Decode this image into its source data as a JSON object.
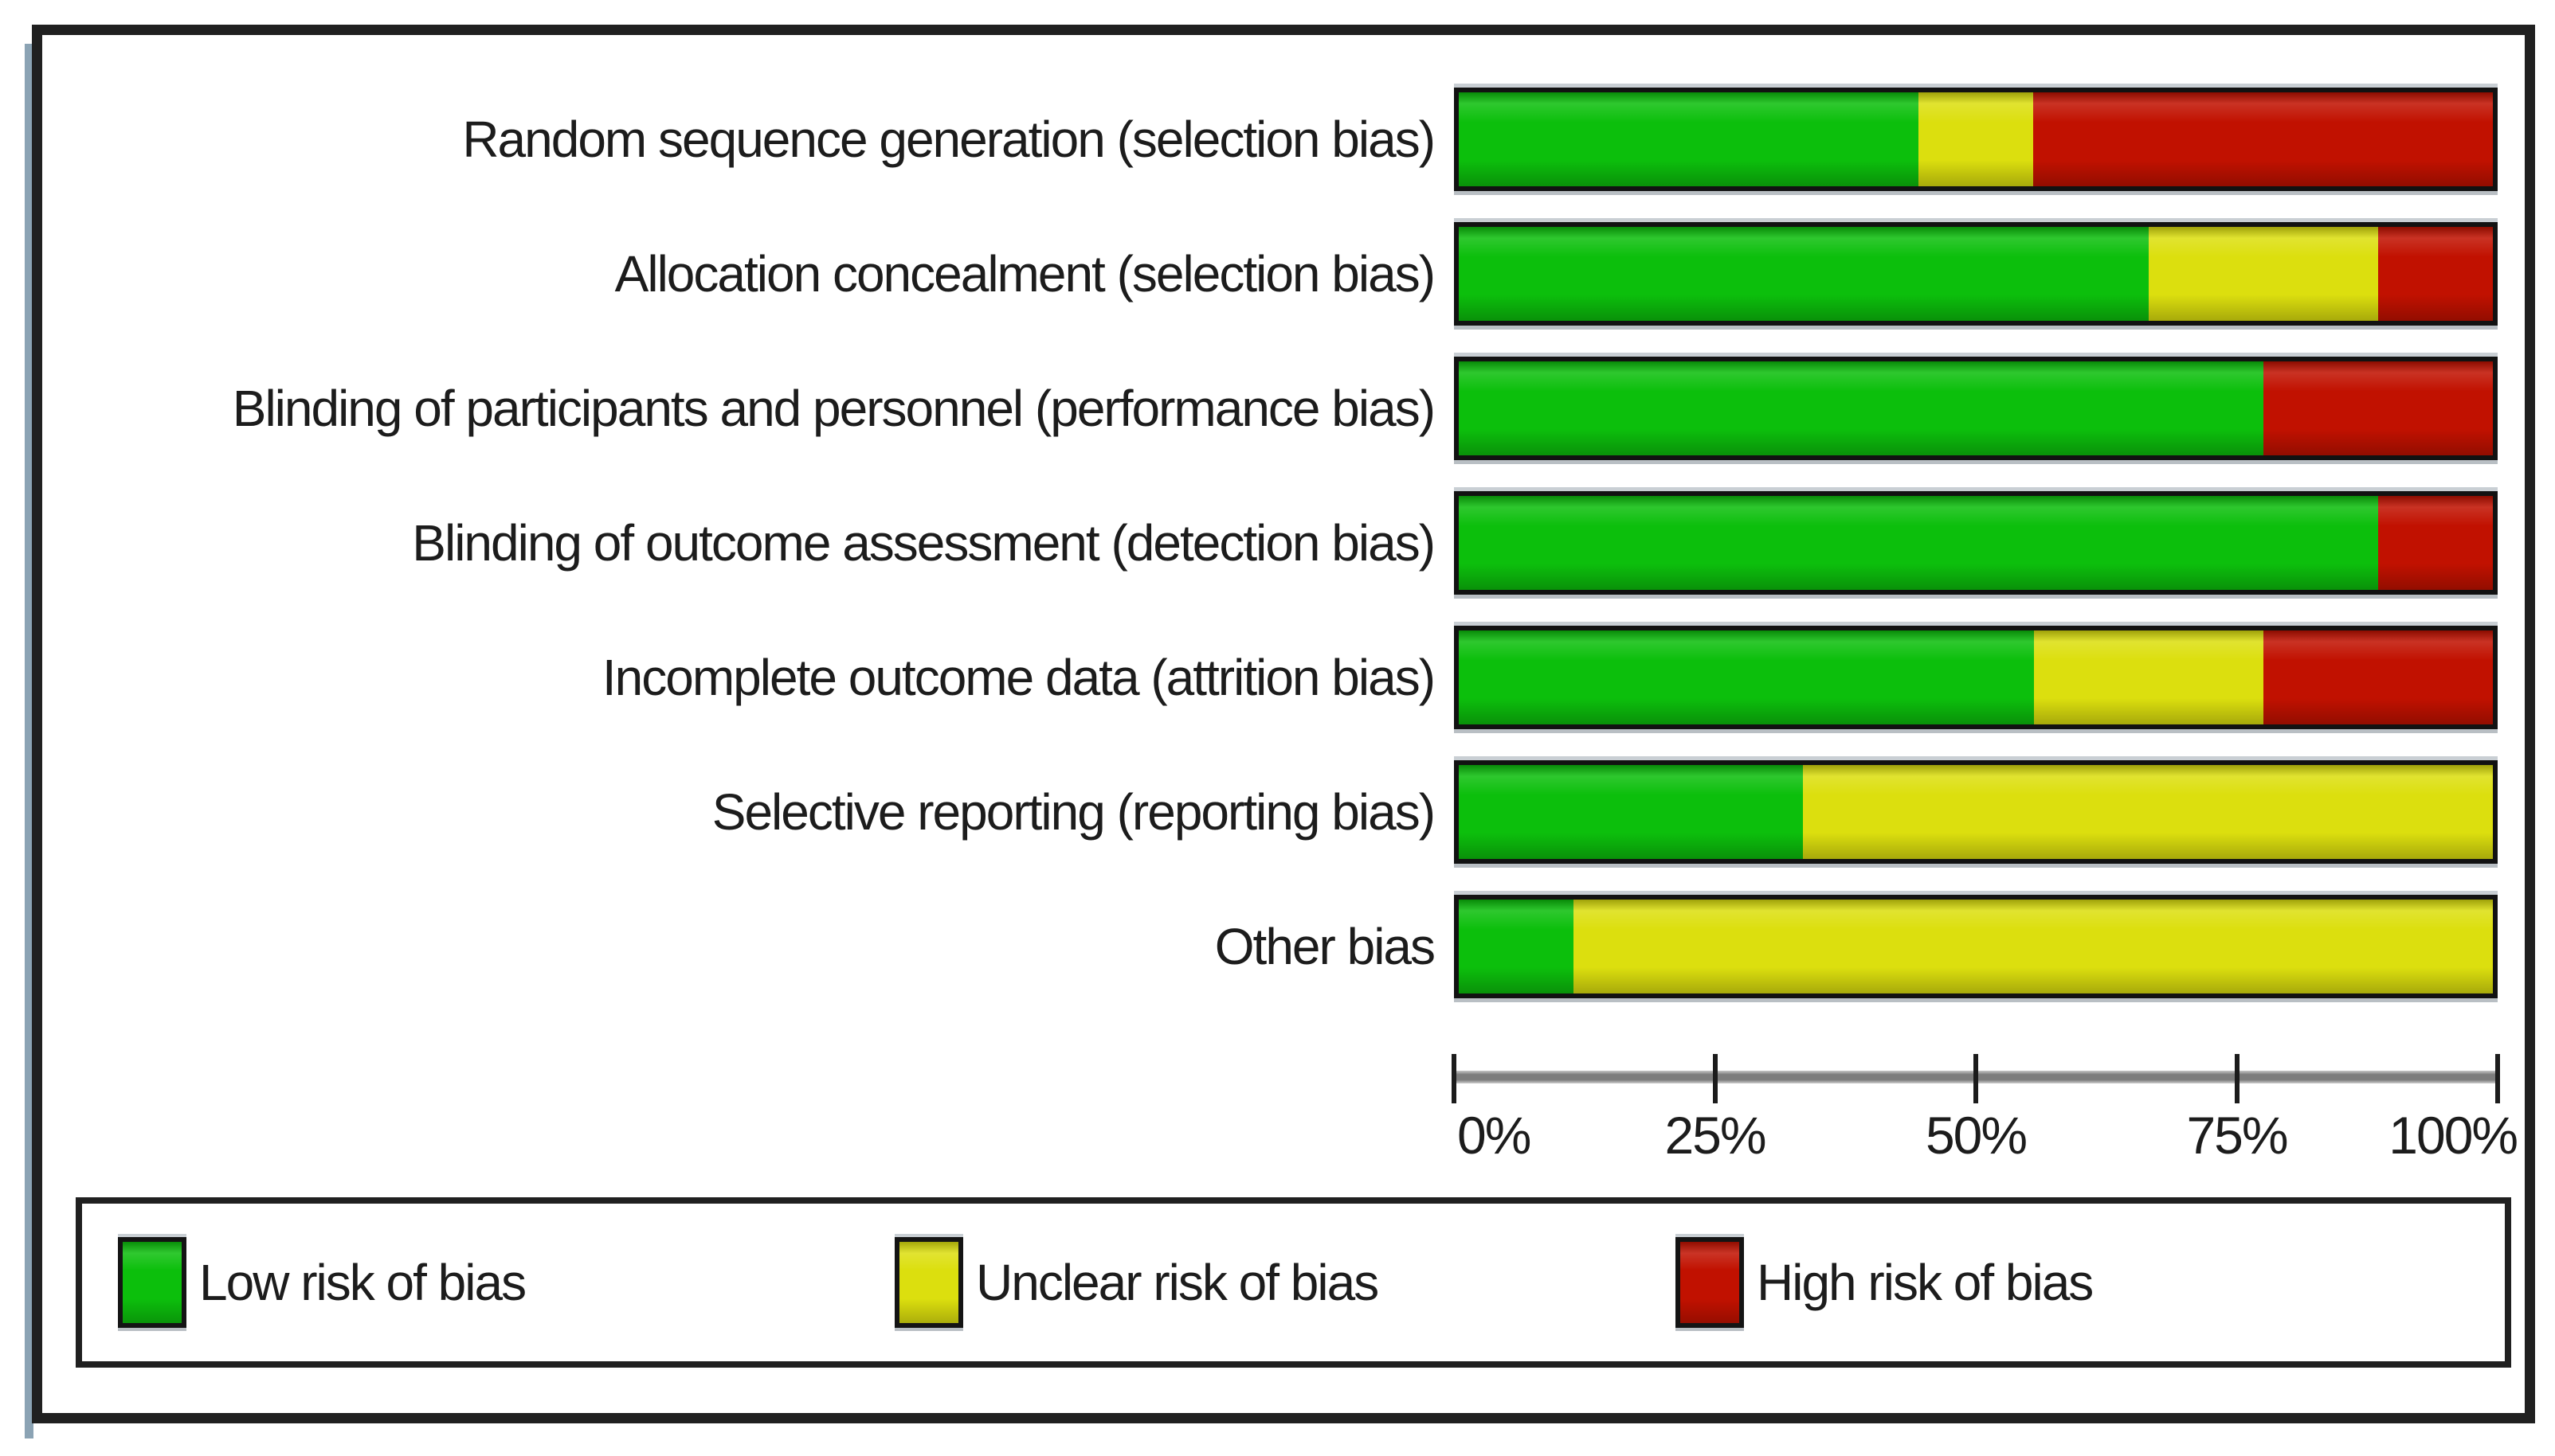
{
  "chart_data": {
    "type": "bar",
    "variant": "horizontal-stacked",
    "title": "",
    "categories": [
      "Random sequence generation (selection bias)",
      "Allocation concealment (selection bias)",
      "Blinding of participants and personnel (performance bias)",
      "Blinding of outcome assessment (detection bias)",
      "Incomplete outcome data (attrition bias)",
      "Selective reporting (reporting bias)",
      "Other bias"
    ],
    "series": [
      {
        "key": "low",
        "name": "Low risk of bias",
        "color": "#0cbf0c",
        "values_pct": [
          44.4,
          66.7,
          77.8,
          88.9,
          55.6,
          33.3,
          11.1
        ]
      },
      {
        "key": "unclear",
        "name": "Unclear risk of bias",
        "color": "#dcdf0e",
        "values_pct": [
          11.1,
          22.2,
          0,
          0,
          22.2,
          66.7,
          88.9
        ]
      },
      {
        "key": "high",
        "name": "High risk of bias",
        "color": "#c11100",
        "values_pct": [
          44.4,
          11.1,
          22.2,
          11.1,
          22.2,
          0,
          0
        ]
      }
    ],
    "xlabel": "",
    "ylabel": "",
    "xlim": [
      0,
      100
    ],
    "x_ticks": [
      {
        "label": "0%",
        "position_pct": 0
      },
      {
        "label": "25%",
        "position_pct": 25
      },
      {
        "label": "50%",
        "position_pct": 50
      },
      {
        "label": "75%",
        "position_pct": 75
      },
      {
        "label": "100%",
        "position_pct": 100
      }
    ],
    "grid": false,
    "legend_position": "bottom"
  },
  "legend": {
    "items": [
      {
        "label": "Low risk of bias",
        "color": "#0cbf0c"
      },
      {
        "label": "Unclear risk of bias",
        "color": "#dcdf0e"
      },
      {
        "label": "High risk of bias",
        "color": "#c11100"
      }
    ]
  },
  "colors": {
    "low_risk": "#0cbf0c",
    "unclear_risk": "#dcdf0e",
    "high_risk": "#c11100",
    "frame_border": "#202020",
    "bar_border": "#121212",
    "axis_line": "#7d7d7d",
    "text": "#1c1c1c"
  }
}
